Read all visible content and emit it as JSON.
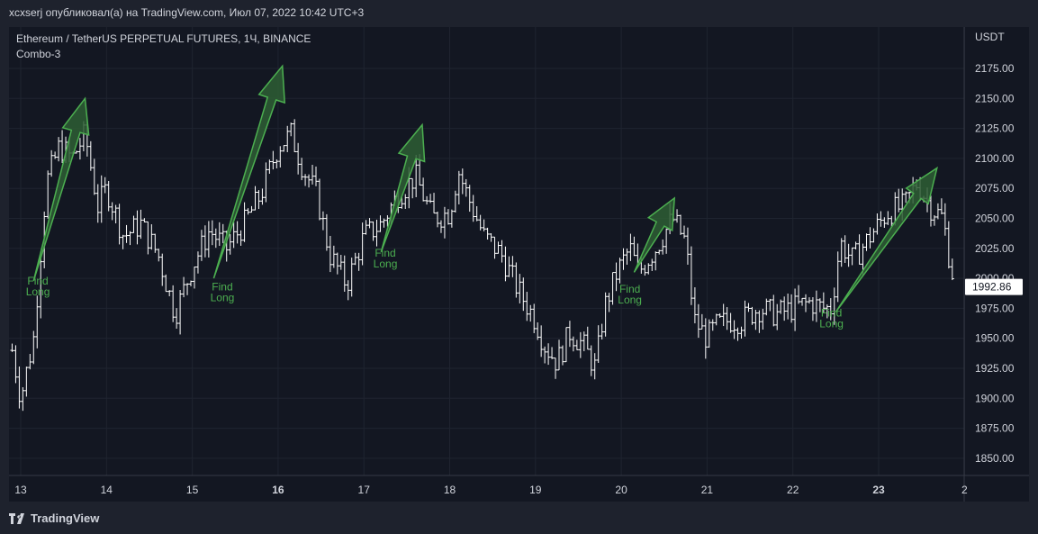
{
  "header": {
    "text": "xcxserj опубликовал(а) на TradingView.com, Июл 07, 2022 10:42 UTC+3"
  },
  "chart": {
    "symbol_line": "Ethereum / TetherUS PERPETUAL FUTURES, 1Ч, BINANCE",
    "study_name": "Combo-3",
    "currency": "USDT",
    "last_price": "1992.86"
  },
  "footer": {
    "brand": "TradingView"
  },
  "colors": {
    "background": "#131722",
    "candle": "#ffffff",
    "signal_green": "#4caf50",
    "arrow_fill": "#2e5e34",
    "grid": "#1f2430",
    "text": "#d1d4dc"
  },
  "chart_data": {
    "type": "ohlc",
    "x_tick_labels": [
      {
        "label": "13",
        "bold": false
      },
      {
        "label": "14",
        "bold": false
      },
      {
        "label": "15",
        "bold": false
      },
      {
        "label": "16",
        "bold": true
      },
      {
        "label": "17",
        "bold": false
      },
      {
        "label": "18",
        "bold": false
      },
      {
        "label": "19",
        "bold": false
      },
      {
        "label": "20",
        "bold": false
      },
      {
        "label": "21",
        "bold": false
      },
      {
        "label": "22",
        "bold": false
      },
      {
        "label": "23",
        "bold": true
      },
      {
        "label": "2",
        "bold": false
      }
    ],
    "y_ticks": [
      "2175.00",
      "2150.00",
      "2125.00",
      "2100.00",
      "2075.00",
      "2050.00",
      "2025.00",
      "2000.00",
      "1975.00",
      "1950.00",
      "1925.00",
      "1900.00",
      "1875.00",
      "1850.00"
    ],
    "ylim": [
      1840,
      2195
    ],
    "signals": [
      {
        "label": "Find Long",
        "day": 13.2,
        "price": 1995
      },
      {
        "label": "Find Long",
        "day": 15.35,
        "price": 1990
      },
      {
        "label": "Find Long",
        "day": 17.25,
        "price": 2018
      },
      {
        "label": "Find Long",
        "day": 20.1,
        "price": 1988
      },
      {
        "label": "Find Long",
        "day": 22.45,
        "price": 1968
      }
    ],
    "arrows": [
      {
        "from": [
          13.15,
          1998
        ],
        "to": [
          13.75,
          2150
        ]
      },
      {
        "from": [
          15.25,
          2000
        ],
        "to": [
          16.05,
          2177
        ]
      },
      {
        "from": [
          17.2,
          2022
        ],
        "to": [
          17.68,
          2128
        ]
      },
      {
        "from": [
          20.15,
          2005
        ],
        "to": [
          20.62,
          2067
        ]
      },
      {
        "from": [
          22.5,
          1972
        ],
        "to": [
          23.68,
          2092
        ]
      }
    ],
    "anchors": [
      [
        12.9,
        1940
      ],
      [
        13.0,
        1900
      ],
      [
        13.15,
        1950
      ],
      [
        13.3,
        2080
      ],
      [
        13.45,
        2110
      ],
      [
        13.6,
        2100
      ],
      [
        13.75,
        2120
      ],
      [
        13.9,
        2060
      ],
      [
        14.0,
        2075
      ],
      [
        14.2,
        2035
      ],
      [
        14.4,
        2045
      ],
      [
        14.6,
        2020
      ],
      [
        14.8,
        1970
      ],
      [
        15.0,
        2010
      ],
      [
        15.2,
        2040
      ],
      [
        15.4,
        2025
      ],
      [
        15.6,
        2045
      ],
      [
        15.8,
        2070
      ],
      [
        16.0,
        2110
      ],
      [
        16.15,
        2120
      ],
      [
        16.3,
        2090
      ],
      [
        16.45,
        2070
      ],
      [
        16.6,
        2020
      ],
      [
        16.8,
        1995
      ],
      [
        17.0,
        2035
      ],
      [
        17.2,
        2045
      ],
      [
        17.4,
        2070
      ],
      [
        17.6,
        2085
      ],
      [
        17.8,
        2050
      ],
      [
        18.0,
        2055
      ],
      [
        18.1,
        2090
      ],
      [
        18.2,
        2070
      ],
      [
        18.4,
        2035
      ],
      [
        18.6,
        2020
      ],
      [
        18.8,
        1990
      ],
      [
        19.0,
        1965
      ],
      [
        19.1,
        1945
      ],
      [
        19.25,
        1930
      ],
      [
        19.4,
        1955
      ],
      [
        19.55,
        1945
      ],
      [
        19.7,
        1925
      ],
      [
        19.8,
        1975
      ],
      [
        19.95,
        2005
      ],
      [
        20.1,
        2025
      ],
      [
        20.2,
        2005
      ],
      [
        20.4,
        2025
      ],
      [
        20.6,
        2050
      ],
      [
        20.75,
        2030
      ],
      [
        20.85,
        1965
      ],
      [
        21.0,
        1950
      ],
      [
        21.1,
        1960
      ],
      [
        21.25,
        1965
      ],
      [
        21.4,
        1965
      ],
      [
        21.6,
        1975
      ],
      [
        21.8,
        1970
      ],
      [
        22.0,
        1975
      ],
      [
        22.2,
        1980
      ],
      [
        22.35,
        1975
      ],
      [
        22.45,
        1975
      ],
      [
        22.55,
        2030
      ],
      [
        22.7,
        2015
      ],
      [
        22.9,
        2035
      ],
      [
        23.1,
        2055
      ],
      [
        23.3,
        2060
      ],
      [
        23.45,
        2080
      ],
      [
        23.6,
        2060
      ],
      [
        23.75,
        2050
      ],
      [
        23.85,
        2005
      ]
    ]
  }
}
